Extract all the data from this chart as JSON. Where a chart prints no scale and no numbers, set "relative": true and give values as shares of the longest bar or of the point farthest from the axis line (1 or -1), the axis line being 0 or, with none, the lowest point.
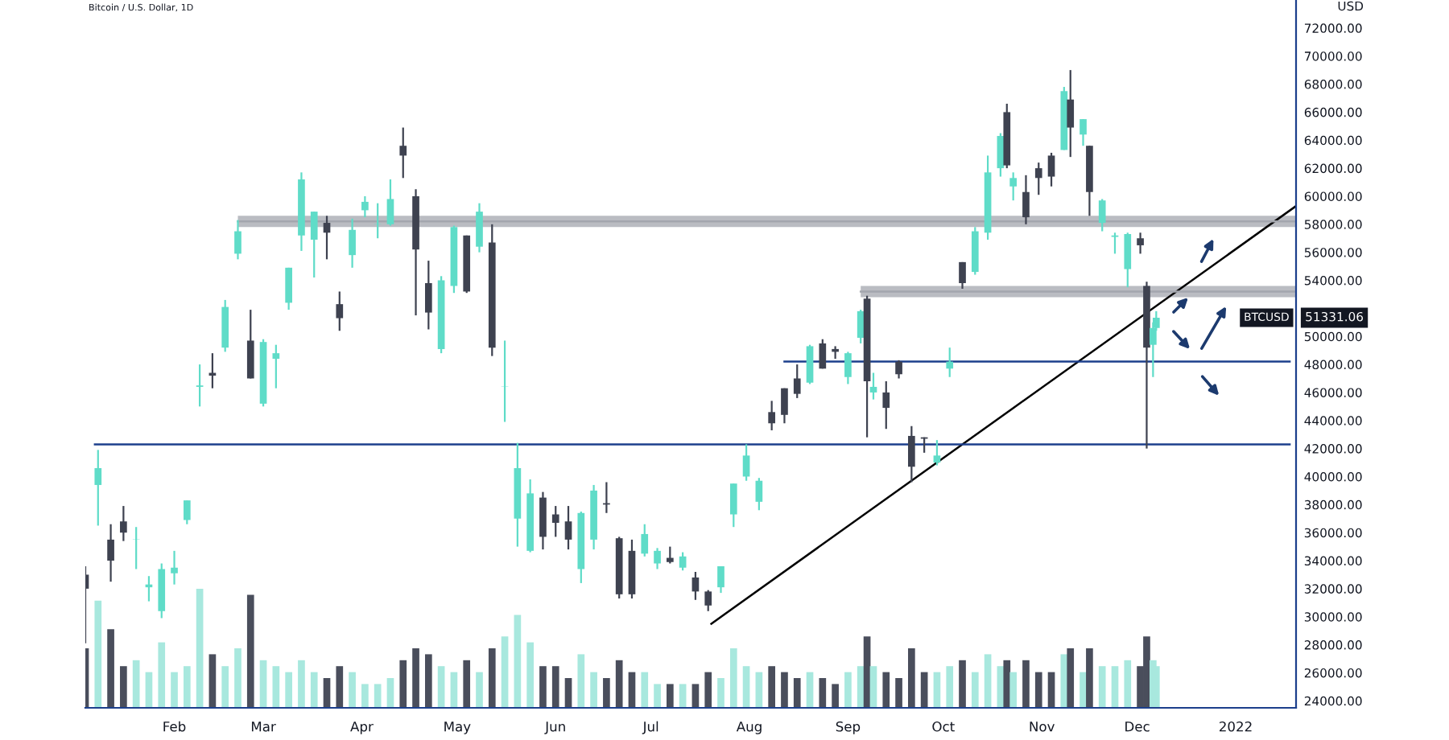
{
  "chart_data": [
    {
      "type": "candlestick",
      "title": "Bitcoin / U.S. Dollar, 1D",
      "ylabel": "USD",
      "xlim": [
        "2021-01-04",
        "2022-01-20"
      ],
      "ylim": [
        23500,
        74000
      ],
      "xticks": [
        {
          "value": "2021-02-01",
          "label": "Feb"
        },
        {
          "value": "2021-03-01",
          "label": "Mar"
        },
        {
          "value": "2021-04-01",
          "label": "Apr"
        },
        {
          "value": "2021-05-01",
          "label": "May"
        },
        {
          "value": "2021-06-01",
          "label": "Jun"
        },
        {
          "value": "2021-07-01",
          "label": "Jul"
        },
        {
          "value": "2021-08-01",
          "label": "Aug"
        },
        {
          "value": "2021-09-01",
          "label": "Sep"
        },
        {
          "value": "2021-10-01",
          "label": "Oct"
        },
        {
          "value": "2021-11-01",
          "label": "Nov"
        },
        {
          "value": "2021-12-01",
          "label": "Dec"
        },
        {
          "value": "2022-01-01",
          "label": "2022"
        }
      ],
      "yticks": [
        {
          "value": 24000,
          "label": "24000.00"
        },
        {
          "value": 26000,
          "label": "26000.00"
        },
        {
          "value": 28000,
          "label": "28000.00"
        },
        {
          "value": 30000,
          "label": "30000.00"
        },
        {
          "value": 32000,
          "label": "32000.00"
        },
        {
          "value": 34000,
          "label": "34000.00"
        },
        {
          "value": 36000,
          "label": "36000.00"
        },
        {
          "value": 38000,
          "label": "38000.00"
        },
        {
          "value": 40000,
          "label": "40000.00"
        },
        {
          "value": 42000,
          "label": "42000.00"
        },
        {
          "value": 44000,
          "label": "44000.00"
        },
        {
          "value": 46000,
          "label": "46000.00"
        },
        {
          "value": 48000,
          "label": "48000.00"
        },
        {
          "value": 50000,
          "label": "50000.00"
        },
        {
          "value": 54000,
          "label": "54000.00"
        },
        {
          "value": 56000,
          "label": "56000.00"
        },
        {
          "value": 58000,
          "label": "58000.00"
        },
        {
          "value": 60000,
          "label": "60000.00"
        },
        {
          "value": 62000,
          "label": "62000.00"
        },
        {
          "value": 64000,
          "label": "64000.00"
        },
        {
          "value": 66000,
          "label": "66000.00"
        },
        {
          "value": 68000,
          "label": "68000.00"
        },
        {
          "value": 70000,
          "label": "70000.00"
        },
        {
          "value": 72000,
          "label": "72000.00"
        }
      ],
      "grid": false,
      "legend": false,
      "annotations": [
        "BTCUSD",
        "51331.06"
      ],
      "series": [
        {
          "colors": [
            "#3e4250",
            "#5fdcc8",
            "#3e4250",
            "#3e4250",
            "#5fdcc8",
            "#5fdcc8",
            "#5fdcc8",
            "#5fdcc8",
            "#5fdcc8",
            "#5fdcc8",
            "#3e4250",
            "#5fdcc8",
            "#5fdcc8",
            "#3e4250",
            "#5fdcc8",
            "#5fdcc8",
            "#5fdcc8",
            "#5fdcc8",
            "#5fdcc8",
            "#3e4250",
            "#3e4250",
            "#5fdcc8",
            "#5fdcc8",
            "#5fdcc8",
            "#5fdcc8",
            "#3e4250",
            "#3e4250",
            "#3e4250",
            "#5fdcc8",
            "#5fdcc8",
            "#3e4250",
            "#5fdcc8",
            "#3e4250",
            "#5fdcc8",
            "#5fdcc8",
            "#5fdcc8",
            "#3e4250",
            "#3e4250",
            "#3e4250",
            "#5fdcc8",
            "#5fdcc8",
            "#3e4250",
            "#3e4250",
            "#3e4250",
            "#5fdcc8",
            "#5fdcc8",
            "#3e4250",
            "#5fdcc8",
            "#3e4250",
            "#3e4250",
            "#5fdcc8",
            "#5fdcc8",
            "#5fdcc8",
            "#5fdcc8",
            "#3e4250",
            "#3e4250",
            "#3e4250",
            "#5fdcc8",
            "#3e4250",
            "#3e4250",
            "#5fdcc8",
            "#5fdcc8",
            "#3e4250",
            "#5fdcc8",
            "#3e4250",
            "#3e4250",
            "#3e4250",
            "#3e4250",
            "#5fdcc8",
            "#5fdcc8",
            "#3e4250",
            "#5fdcc8",
            "#5fdcc8",
            "#5fdcc8",
            "#3e4250",
            "#5fdcc8",
            "#3e4250",
            "#3e4250",
            "#3e4250",
            "#5fdcc8",
            "#3e4250",
            "#5fdcc8",
            "#3e4250",
            "#5fdcc8",
            "#5fdcc8",
            "#5fdcc8",
            "#3e4250",
            "#3e4250",
            "#5fdcc8",
            "#5fdcc8"
          ],
          "x": [
            "2021-01-04",
            "2021-01-08",
            "2021-01-12",
            "2021-01-16",
            "2021-01-20",
            "2021-01-24",
            "2021-01-28",
            "2021-02-01",
            "2021-02-05",
            "2021-02-09",
            "2021-02-13",
            "2021-02-17",
            "2021-02-21",
            "2021-02-25",
            "2021-03-01",
            "2021-03-05",
            "2021-03-09",
            "2021-03-13",
            "2021-03-17",
            "2021-03-21",
            "2021-03-25",
            "2021-03-29",
            "2021-04-02",
            "2021-04-06",
            "2021-04-10",
            "2021-04-14",
            "2021-04-18",
            "2021-04-22",
            "2021-04-26",
            "2021-04-30",
            "2021-05-04",
            "2021-05-08",
            "2021-05-12",
            "2021-05-16",
            "2021-05-20",
            "2021-05-24",
            "2021-05-28",
            "2021-06-01",
            "2021-06-05",
            "2021-06-09",
            "2021-06-13",
            "2021-06-17",
            "2021-06-21",
            "2021-06-25",
            "2021-06-29",
            "2021-07-03",
            "2021-07-07",
            "2021-07-11",
            "2021-07-15",
            "2021-07-19",
            "2021-07-23",
            "2021-07-27",
            "2021-07-31",
            "2021-08-04",
            "2021-08-08",
            "2021-08-12",
            "2021-08-16",
            "2021-08-20",
            "2021-08-24",
            "2021-08-28",
            "2021-09-01",
            "2021-09-05",
            "2021-09-07",
            "2021-09-09",
            "2021-09-13",
            "2021-09-17",
            "2021-09-21",
            "2021-09-25",
            "2021-09-29",
            "2021-10-03",
            "2021-10-07",
            "2021-10-11",
            "2021-10-15",
            "2021-10-19",
            "2021-10-21",
            "2021-10-23",
            "2021-10-27",
            "2021-10-31",
            "2021-11-04",
            "2021-11-08",
            "2021-11-10",
            "2021-11-14",
            "2021-11-16",
            "2021-11-20",
            "2021-11-24",
            "2021-11-28",
            "2021-12-02",
            "2021-12-04",
            "2021-12-06",
            "2021-12-07"
          ],
          "ohlc": [
            [
              33000,
              33600,
              28100,
              32000
            ],
            [
              39400,
              41900,
              36500,
              40600
            ],
            [
              35500,
              36600,
              32500,
              34000
            ],
            [
              36800,
              37900,
              35400,
              36000
            ],
            [
              35500,
              36400,
              33400,
              35500
            ],
            [
              32100,
              32900,
              31100,
              32300
            ],
            [
              30400,
              33800,
              29900,
              33400
            ],
            [
              33100,
              34700,
              32300,
              33500
            ],
            [
              36900,
              38300,
              36600,
              38300
            ],
            [
              46400,
              48000,
              45000,
              46500
            ],
            [
              47400,
              48800,
              46300,
              47200
            ],
            [
              49200,
              52600,
              48900,
              52100
            ],
            [
              55900,
              58300,
              55500,
              57500
            ],
            [
              49700,
              51900,
              47000,
              47000
            ],
            [
              45200,
              49800,
              45000,
              49600
            ],
            [
              48400,
              49400,
              46300,
              48800
            ],
            [
              52400,
              54900,
              51900,
              54900
            ],
            [
              57200,
              61700,
              56100,
              61200
            ],
            [
              56900,
              58900,
              54200,
              58900
            ],
            [
              58100,
              58600,
              55500,
              57400
            ],
            [
              52300,
              53200,
              50400,
              51300
            ],
            [
              55800,
              58400,
              54900,
              57600
            ],
            [
              59000,
              60000,
              58500,
              59600
            ],
            [
              58000,
              59500,
              57000,
              58000
            ],
            [
              58000,
              61200,
              57900,
              59800
            ],
            [
              63600,
              64900,
              61300,
              62900
            ],
            [
              60000,
              60500,
              51500,
              56200
            ],
            [
              53800,
              55400,
              50500,
              51700
            ],
            [
              49100,
              54300,
              48800,
              54000
            ],
            [
              53600,
              57900,
              53100,
              57800
            ],
            [
              57200,
              57200,
              53100,
              53200
            ],
            [
              56400,
              59500,
              56000,
              58900
            ],
            [
              56700,
              58000,
              48600,
              49200
            ],
            [
              46400,
              49700,
              43900,
              46400
            ],
            [
              37000,
              42400,
              35000,
              40600
            ],
            [
              34700,
              39800,
              34600,
              38800
            ],
            [
              38500,
              38900,
              34800,
              35700
            ],
            [
              37300,
              37900,
              35700,
              36700
            ],
            [
              36800,
              37900,
              34800,
              35500
            ],
            [
              33400,
              37500,
              32400,
              37400
            ],
            [
              35500,
              39400,
              34800,
              39000
            ],
            [
              38100,
              39600,
              37400,
              38000
            ],
            [
              35600,
              35700,
              31300,
              31600
            ],
            [
              34700,
              35500,
              31300,
              31600
            ],
            [
              34500,
              36600,
              34300,
              35900
            ],
            [
              33800,
              34900,
              33400,
              34700
            ],
            [
              34200,
              35000,
              33800,
              33900
            ],
            [
              33500,
              34600,
              33300,
              34300
            ],
            [
              32800,
              33200,
              31200,
              31800
            ],
            [
              31800,
              31900,
              30400,
              30800
            ],
            [
              32100,
              33600,
              31700,
              33600
            ],
            [
              37300,
              39500,
              36400,
              39500
            ],
            [
              40000,
              42300,
              39700,
              41500
            ],
            [
              38200,
              39900,
              37600,
              39700
            ],
            [
              44600,
              45400,
              43300,
              43800
            ],
            [
              46300,
              46300,
              43800,
              44400
            ],
            [
              47000,
              48000,
              45600,
              45900
            ],
            [
              46700,
              49400,
              46600,
              49300
            ],
            [
              49500,
              49800,
              47700,
              47700
            ],
            [
              49100,
              49300,
              48400,
              48900
            ],
            [
              47100,
              48900,
              46600,
              48800
            ],
            [
              49900,
              51900,
              49500,
              51800
            ],
            [
              52700,
              52900,
              42800,
              46800
            ],
            [
              46000,
              47400,
              45500,
              46400
            ],
            [
              46000,
              46800,
              43400,
              44900
            ],
            [
              48200,
              48300,
              47000,
              47300
            ],
            [
              42900,
              43600,
              39600,
              40700
            ],
            [
              42800,
              42800,
              41700,
              42700
            ],
            [
              41000,
              42600,
              40800,
              41500
            ],
            [
              47700,
              49200,
              47100,
              48200
            ],
            [
              55300,
              55300,
              53400,
              53800
            ],
            [
              54600,
              57800,
              54400,
              57500
            ],
            [
              57400,
              62900,
              56900,
              61700
            ],
            [
              62000,
              64500,
              61400,
              64300
            ],
            [
              66000,
              66600,
              62000,
              62200
            ],
            [
              60700,
              61700,
              59700,
              61300
            ],
            [
              60300,
              61500,
              58000,
              58500
            ],
            [
              62000,
              62400,
              60100,
              61300
            ],
            [
              62900,
              63100,
              60700,
              61400
            ],
            [
              63300,
              67800,
              63300,
              67500
            ],
            [
              66900,
              69000,
              62800,
              64900
            ],
            [
              64400,
              65500,
              63600,
              65500
            ],
            [
              63600,
              63600,
              58600,
              60300
            ],
            [
              58100,
              59800,
              57500,
              59700
            ],
            [
              57100,
              57400,
              55900,
              57200
            ],
            [
              54800,
              57400,
              53500,
              57300
            ],
            [
              57000,
              57400,
              55900,
              56500
            ],
            [
              53600,
              53900,
              42000,
              49200
            ],
            [
              49400,
              51000,
              47100,
              50600
            ],
            [
              50600,
              51800,
              50400,
              51331.06
            ]
          ]
        },
        {
          "type": "line",
          "color": "#000000",
          "x": [
            "2021-07-20",
            "2022-01-20"
          ],
          "values": [
            29500,
            59300
          ]
        },
        {
          "type": "line",
          "color": "#1c3f8c",
          "x": [
            "2021-01-07",
            "2022-01-18"
          ],
          "values": [
            42300,
            42300
          ]
        },
        {
          "type": "line",
          "color": "#1c3f8c",
          "x": [
            "2021-08-12",
            "2022-01-18"
          ],
          "values": [
            48200,
            48200
          ]
        },
        {
          "type": "line",
          "color": "#a3a6ae",
          "x": [
            "2021-02-21",
            "2022-01-20"
          ],
          "values": [
            58200,
            58200
          ],
          "lower": [
            57800,
            57800
          ],
          "upper": [
            58600,
            58600
          ]
        },
        {
          "type": "line",
          "color": "#a3a6ae",
          "x": [
            "2021-09-05",
            "2022-01-20"
          ],
          "values": [
            53200,
            53200
          ],
          "lower": [
            52800,
            52800
          ],
          "upper": [
            53600,
            53600
          ]
        }
      ]
    },
    {
      "type": "bar",
      "relative": true,
      "tick_labels": false,
      "xlim": [
        "2021-01-04",
        "2022-01-20"
      ],
      "x": [
        "2021-01-04",
        "2021-01-08",
        "2021-01-12",
        "2021-01-16",
        "2021-01-20",
        "2021-01-24",
        "2021-01-28",
        "2021-02-01",
        "2021-02-05",
        "2021-02-09",
        "2021-02-13",
        "2021-02-17",
        "2021-02-21",
        "2021-02-25",
        "2021-03-01",
        "2021-03-05",
        "2021-03-09",
        "2021-03-13",
        "2021-03-17",
        "2021-03-21",
        "2021-03-25",
        "2021-03-29",
        "2021-04-02",
        "2021-04-06",
        "2021-04-10",
        "2021-04-14",
        "2021-04-18",
        "2021-04-22",
        "2021-04-26",
        "2021-04-30",
        "2021-05-04",
        "2021-05-08",
        "2021-05-12",
        "2021-05-16",
        "2021-05-20",
        "2021-05-24",
        "2021-05-28",
        "2021-06-01",
        "2021-06-05",
        "2021-06-09",
        "2021-06-13",
        "2021-06-17",
        "2021-06-21",
        "2021-06-25",
        "2021-06-29",
        "2021-07-03",
        "2021-07-07",
        "2021-07-11",
        "2021-07-15",
        "2021-07-19",
        "2021-07-23",
        "2021-07-27",
        "2021-07-31",
        "2021-08-04",
        "2021-08-08",
        "2021-08-12",
        "2021-08-16",
        "2021-08-20",
        "2021-08-24",
        "2021-08-28",
        "2021-09-01",
        "2021-09-05",
        "2021-09-07",
        "2021-09-09",
        "2021-09-13",
        "2021-09-17",
        "2021-09-21",
        "2021-09-25",
        "2021-09-29",
        "2021-10-03",
        "2021-10-07",
        "2021-10-11",
        "2021-10-15",
        "2021-10-19",
        "2021-10-21",
        "2021-10-23",
        "2021-10-27",
        "2021-10-31",
        "2021-11-04",
        "2021-11-08",
        "2021-11-10",
        "2021-11-14",
        "2021-11-16",
        "2021-11-20",
        "2021-11-24",
        "2021-11-28",
        "2021-12-02",
        "2021-12-04",
        "2021-12-06",
        "2021-12-07"
      ],
      "colors": [
        "#4a4e5c",
        "#a8e8de",
        "#4a4e5c",
        "#4a4e5c",
        "#a8e8de",
        "#a8e8de",
        "#a8e8de",
        "#a8e8de",
        "#a8e8de",
        "#a8e8de",
        "#4a4e5c",
        "#a8e8de",
        "#a8e8de",
        "#4a4e5c",
        "#a8e8de",
        "#a8e8de",
        "#a8e8de",
        "#a8e8de",
        "#a8e8de",
        "#4a4e5c",
        "#4a4e5c",
        "#a8e8de",
        "#a8e8de",
        "#a8e8de",
        "#a8e8de",
        "#4a4e5c",
        "#4a4e5c",
        "#4a4e5c",
        "#a8e8de",
        "#a8e8de",
        "#4a4e5c",
        "#a8e8de",
        "#4a4e5c",
        "#a8e8de",
        "#a8e8de",
        "#a8e8de",
        "#4a4e5c",
        "#4a4e5c",
        "#4a4e5c",
        "#a8e8de",
        "#a8e8de",
        "#4a4e5c",
        "#4a4e5c",
        "#4a4e5c",
        "#a8e8de",
        "#a8e8de",
        "#4a4e5c",
        "#a8e8de",
        "#4a4e5c",
        "#4a4e5c",
        "#a8e8de",
        "#a8e8de",
        "#a8e8de",
        "#a8e8de",
        "#4a4e5c",
        "#4a4e5c",
        "#4a4e5c",
        "#a8e8de",
        "#4a4e5c",
        "#4a4e5c",
        "#a8e8de",
        "#a8e8de",
        "#4a4e5c",
        "#a8e8de",
        "#4a4e5c",
        "#4a4e5c",
        "#4a4e5c",
        "#4a4e5c",
        "#a8e8de",
        "#a8e8de",
        "#4a4e5c",
        "#a8e8de",
        "#a8e8de",
        "#a8e8de",
        "#4a4e5c",
        "#a8e8de",
        "#4a4e5c",
        "#4a4e5c",
        "#4a4e5c",
        "#a8e8de",
        "#4a4e5c",
        "#a8e8de",
        "#4a4e5c",
        "#a8e8de",
        "#a8e8de",
        "#a8e8de",
        "#4a4e5c",
        "#4a4e5c",
        "#a8e8de",
        "#a8e8de"
      ],
      "values": [
        0.5,
        0.9,
        0.66,
        0.35,
        0.4,
        0.3,
        0.55,
        0.3,
        0.35,
        1,
        0.45,
        0.35,
        0.5,
        0.95,
        0.4,
        0.35,
        0.3,
        0.4,
        0.3,
        0.25,
        0.35,
        0.3,
        0.2,
        0.2,
        0.25,
        0.4,
        0.5,
        0.45,
        0.35,
        0.3,
        0.4,
        0.3,
        0.5,
        0.6,
        0.78,
        0.55,
        0.35,
        0.35,
        0.25,
        0.45,
        0.3,
        0.25,
        0.4,
        0.3,
        0.3,
        0.2,
        0.2,
        0.2,
        0.2,
        0.3,
        0.25,
        0.5,
        0.35,
        0.3,
        0.35,
        0.3,
        0.25,
        0.3,
        0.25,
        0.2,
        0.3,
        0.35,
        0.6,
        0.35,
        0.3,
        0.25,
        0.5,
        0.3,
        0.3,
        0.35,
        0.4,
        0.3,
        0.45,
        0.35,
        0.4,
        0.3,
        0.4,
        0.3,
        0.3,
        0.45,
        0.5,
        0.3,
        0.5,
        0.35,
        0.35,
        0.4,
        0.35,
        0.6,
        0.4,
        0.35
      ]
    }
  ]
}
